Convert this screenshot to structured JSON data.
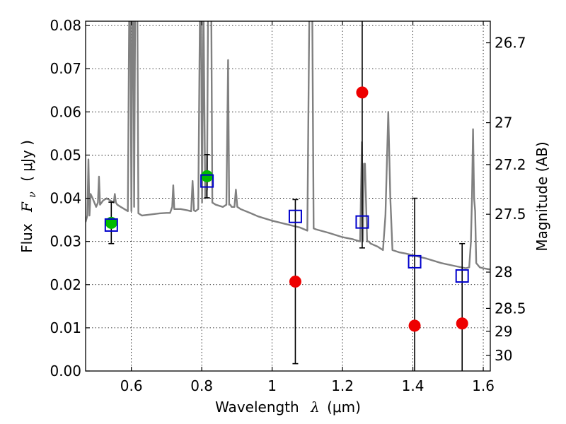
{
  "chart_data": {
    "type": "scatter",
    "xlabel_prefix": "Wavelength",
    "xlabel_symbol": "λ",
    "xlabel_unit": "(μm)",
    "ylabel_left_prefix": "Flux",
    "ylabel_left_symbol": "F",
    "ylabel_left_subscript": "ν",
    "ylabel_left_unit": "( μJy )",
    "ylabel_right": "Magnitude (AB)",
    "xlim": [
      0.47,
      1.62
    ],
    "ylim": [
      0.0,
      0.081
    ],
    "x_ticks": [
      {
        "value": 0.6,
        "label": "0.6"
      },
      {
        "value": 0.8,
        "label": "0.8"
      },
      {
        "value": 1.0,
        "label": "1"
      },
      {
        "value": 1.2,
        "label": "1.2"
      },
      {
        "value": 1.4,
        "label": "1.4"
      },
      {
        "value": 1.6,
        "label": "1.6"
      }
    ],
    "y_ticks": [
      {
        "value": 0.0,
        "label": "0.00"
      },
      {
        "value": 0.01,
        "label": "0.01"
      },
      {
        "value": 0.02,
        "label": "0.02"
      },
      {
        "value": 0.03,
        "label": "0.03"
      },
      {
        "value": 0.04,
        "label": "0.04"
      },
      {
        "value": 0.05,
        "label": "0.05"
      },
      {
        "value": 0.06,
        "label": "0.06"
      },
      {
        "value": 0.07,
        "label": "0.07"
      },
      {
        "value": 0.08,
        "label": "0.08"
      }
    ],
    "right_ticks": [
      {
        "flux": 0.076,
        "label": "26.7"
      },
      {
        "flux": 0.0575,
        "label": "27"
      },
      {
        "flux": 0.0478,
        "label": "27.2"
      },
      {
        "flux": 0.0363,
        "label": "27.5"
      },
      {
        "flux": 0.0229,
        "label": "28"
      },
      {
        "flux": 0.0145,
        "label": "28.5"
      },
      {
        "flux": 0.0092,
        "label": "29"
      },
      {
        "flux": 0.0036,
        "label": "30"
      }
    ],
    "grid": true,
    "colors": {
      "spectrum": "#808080",
      "model_box": "#0000cc",
      "green_point": "#00bb00",
      "red_point": "#ee0000",
      "errorbar": "#000000"
    },
    "spectrum": {
      "name": "",
      "x": [
        0.47,
        0.475,
        0.478,
        0.481,
        0.484,
        0.49,
        0.5,
        0.505,
        0.508,
        0.511,
        0.52,
        0.53,
        0.54,
        0.55,
        0.553,
        0.556,
        0.56,
        0.57,
        0.58,
        0.59,
        0.594,
        0.597,
        0.6,
        0.603,
        0.606,
        0.608,
        0.611,
        0.614,
        0.617,
        0.62,
        0.63,
        0.65,
        0.68,
        0.7,
        0.71,
        0.716,
        0.719,
        0.722,
        0.74,
        0.76,
        0.77,
        0.774,
        0.778,
        0.782,
        0.79,
        0.795,
        0.798,
        0.801,
        0.805,
        0.81,
        0.815,
        0.818,
        0.821,
        0.824,
        0.827,
        0.83,
        0.84,
        0.86,
        0.87,
        0.875,
        0.878,
        0.881,
        0.885,
        0.893,
        0.897,
        0.901,
        0.91,
        0.94,
        0.96,
        1.0,
        1.04,
        1.08,
        1.1,
        1.106,
        1.11,
        1.114,
        1.118,
        1.125,
        1.16,
        1.2,
        1.23,
        1.25,
        1.255,
        1.258,
        1.261,
        1.264,
        1.27,
        1.275,
        1.28,
        1.3,
        1.315,
        1.322,
        1.326,
        1.33,
        1.336,
        1.342,
        1.36,
        1.38,
        1.4,
        1.44,
        1.48,
        1.52,
        1.55,
        1.56,
        1.565,
        1.568,
        1.571,
        1.574,
        1.577,
        1.58,
        1.59,
        1.6,
        1.62
      ],
      "y": [
        0.0345,
        0.036,
        0.049,
        0.036,
        0.041,
        0.04,
        0.038,
        0.039,
        0.045,
        0.0385,
        0.0395,
        0.04,
        0.0395,
        0.039,
        0.041,
        0.039,
        0.0385,
        0.038,
        0.0375,
        0.037,
        0.085,
        0.085,
        0.037,
        0.085,
        0.085,
        0.038,
        0.085,
        0.085,
        0.085,
        0.0365,
        0.036,
        0.0362,
        0.0365,
        0.0366,
        0.0366,
        0.038,
        0.043,
        0.0375,
        0.0375,
        0.0372,
        0.037,
        0.044,
        0.0372,
        0.037,
        0.0375,
        0.085,
        0.085,
        0.039,
        0.085,
        0.04,
        0.042,
        0.085,
        0.085,
        0.085,
        0.085,
        0.039,
        0.0385,
        0.038,
        0.0385,
        0.072,
        0.0385,
        0.0385,
        0.038,
        0.038,
        0.042,
        0.038,
        0.0375,
        0.0365,
        0.0358,
        0.0348,
        0.034,
        0.0332,
        0.0325,
        0.085,
        0.085,
        0.085,
        0.033,
        0.0328,
        0.032,
        0.031,
        0.0305,
        0.03,
        0.053,
        0.03,
        0.048,
        0.048,
        0.03,
        0.03,
        0.0295,
        0.0288,
        0.028,
        0.036,
        0.048,
        0.06,
        0.04,
        0.028,
        0.0275,
        0.0272,
        0.0268,
        0.026,
        0.025,
        0.0243,
        0.0238,
        0.024,
        0.03,
        0.04,
        0.056,
        0.04,
        0.037,
        0.025,
        0.024,
        0.0238,
        0.0235
      ]
    },
    "model_boxes": {
      "name": "",
      "x": [
        0.543,
        0.815,
        1.066,
        1.256,
        1.405,
        1.54
      ],
      "y": [
        0.0338,
        0.044,
        0.0358,
        0.0345,
        0.0253,
        0.022
      ]
    },
    "observed": [
      {
        "x": 0.543,
        "y": 0.0343,
        "err_low": 0.0048,
        "err_high": 0.0048,
        "color": "green"
      },
      {
        "x": 0.815,
        "y": 0.0451,
        "err_low": 0.005,
        "err_high": 0.005,
        "color": "green"
      },
      {
        "x": 1.066,
        "y": 0.0207,
        "err_low": 0.019,
        "err_high": 0.019,
        "color": "red"
      },
      {
        "x": 1.256,
        "y": 0.0645,
        "err_low": 0.036,
        "err_high": 0.036,
        "color": "red"
      },
      {
        "x": 1.405,
        "y": 0.0105,
        "err_low": 0.0115,
        "err_high": 0.0295,
        "color": "red"
      },
      {
        "x": 1.54,
        "y": 0.011,
        "err_low": 0.0115,
        "err_high": 0.0185,
        "color": "red"
      }
    ]
  }
}
